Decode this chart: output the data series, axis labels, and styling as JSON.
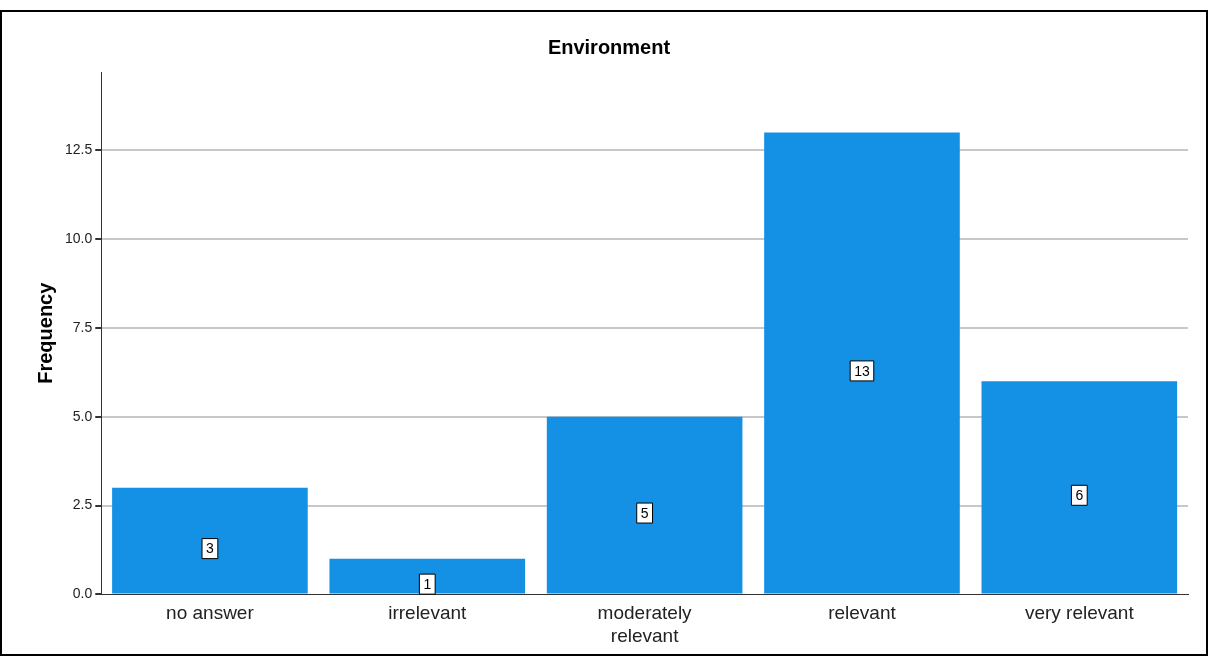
{
  "chart_data": {
    "type": "bar",
    "title": "Environment",
    "ylabel": "Frequency",
    "categories": [
      "no answer",
      "irrelevant",
      "moderately relevant",
      "relevant",
      "very relevant"
    ],
    "values": [
      3,
      1,
      5,
      13,
      6
    ],
    "color": "#1490e4",
    "ylim": [
      0,
      14.7
    ],
    "yticks": [
      {
        "value": 0,
        "label": "0.0"
      },
      {
        "value": 2.5,
        "label": "2.5"
      },
      {
        "value": 5,
        "label": "5.0"
      },
      {
        "value": 7.5,
        "label": "7.5"
      },
      {
        "value": 10,
        "label": "10.0"
      },
      {
        "value": 12.5,
        "label": "12.5"
      }
    ],
    "grid": "y",
    "legend": false,
    "data_labels": true
  }
}
